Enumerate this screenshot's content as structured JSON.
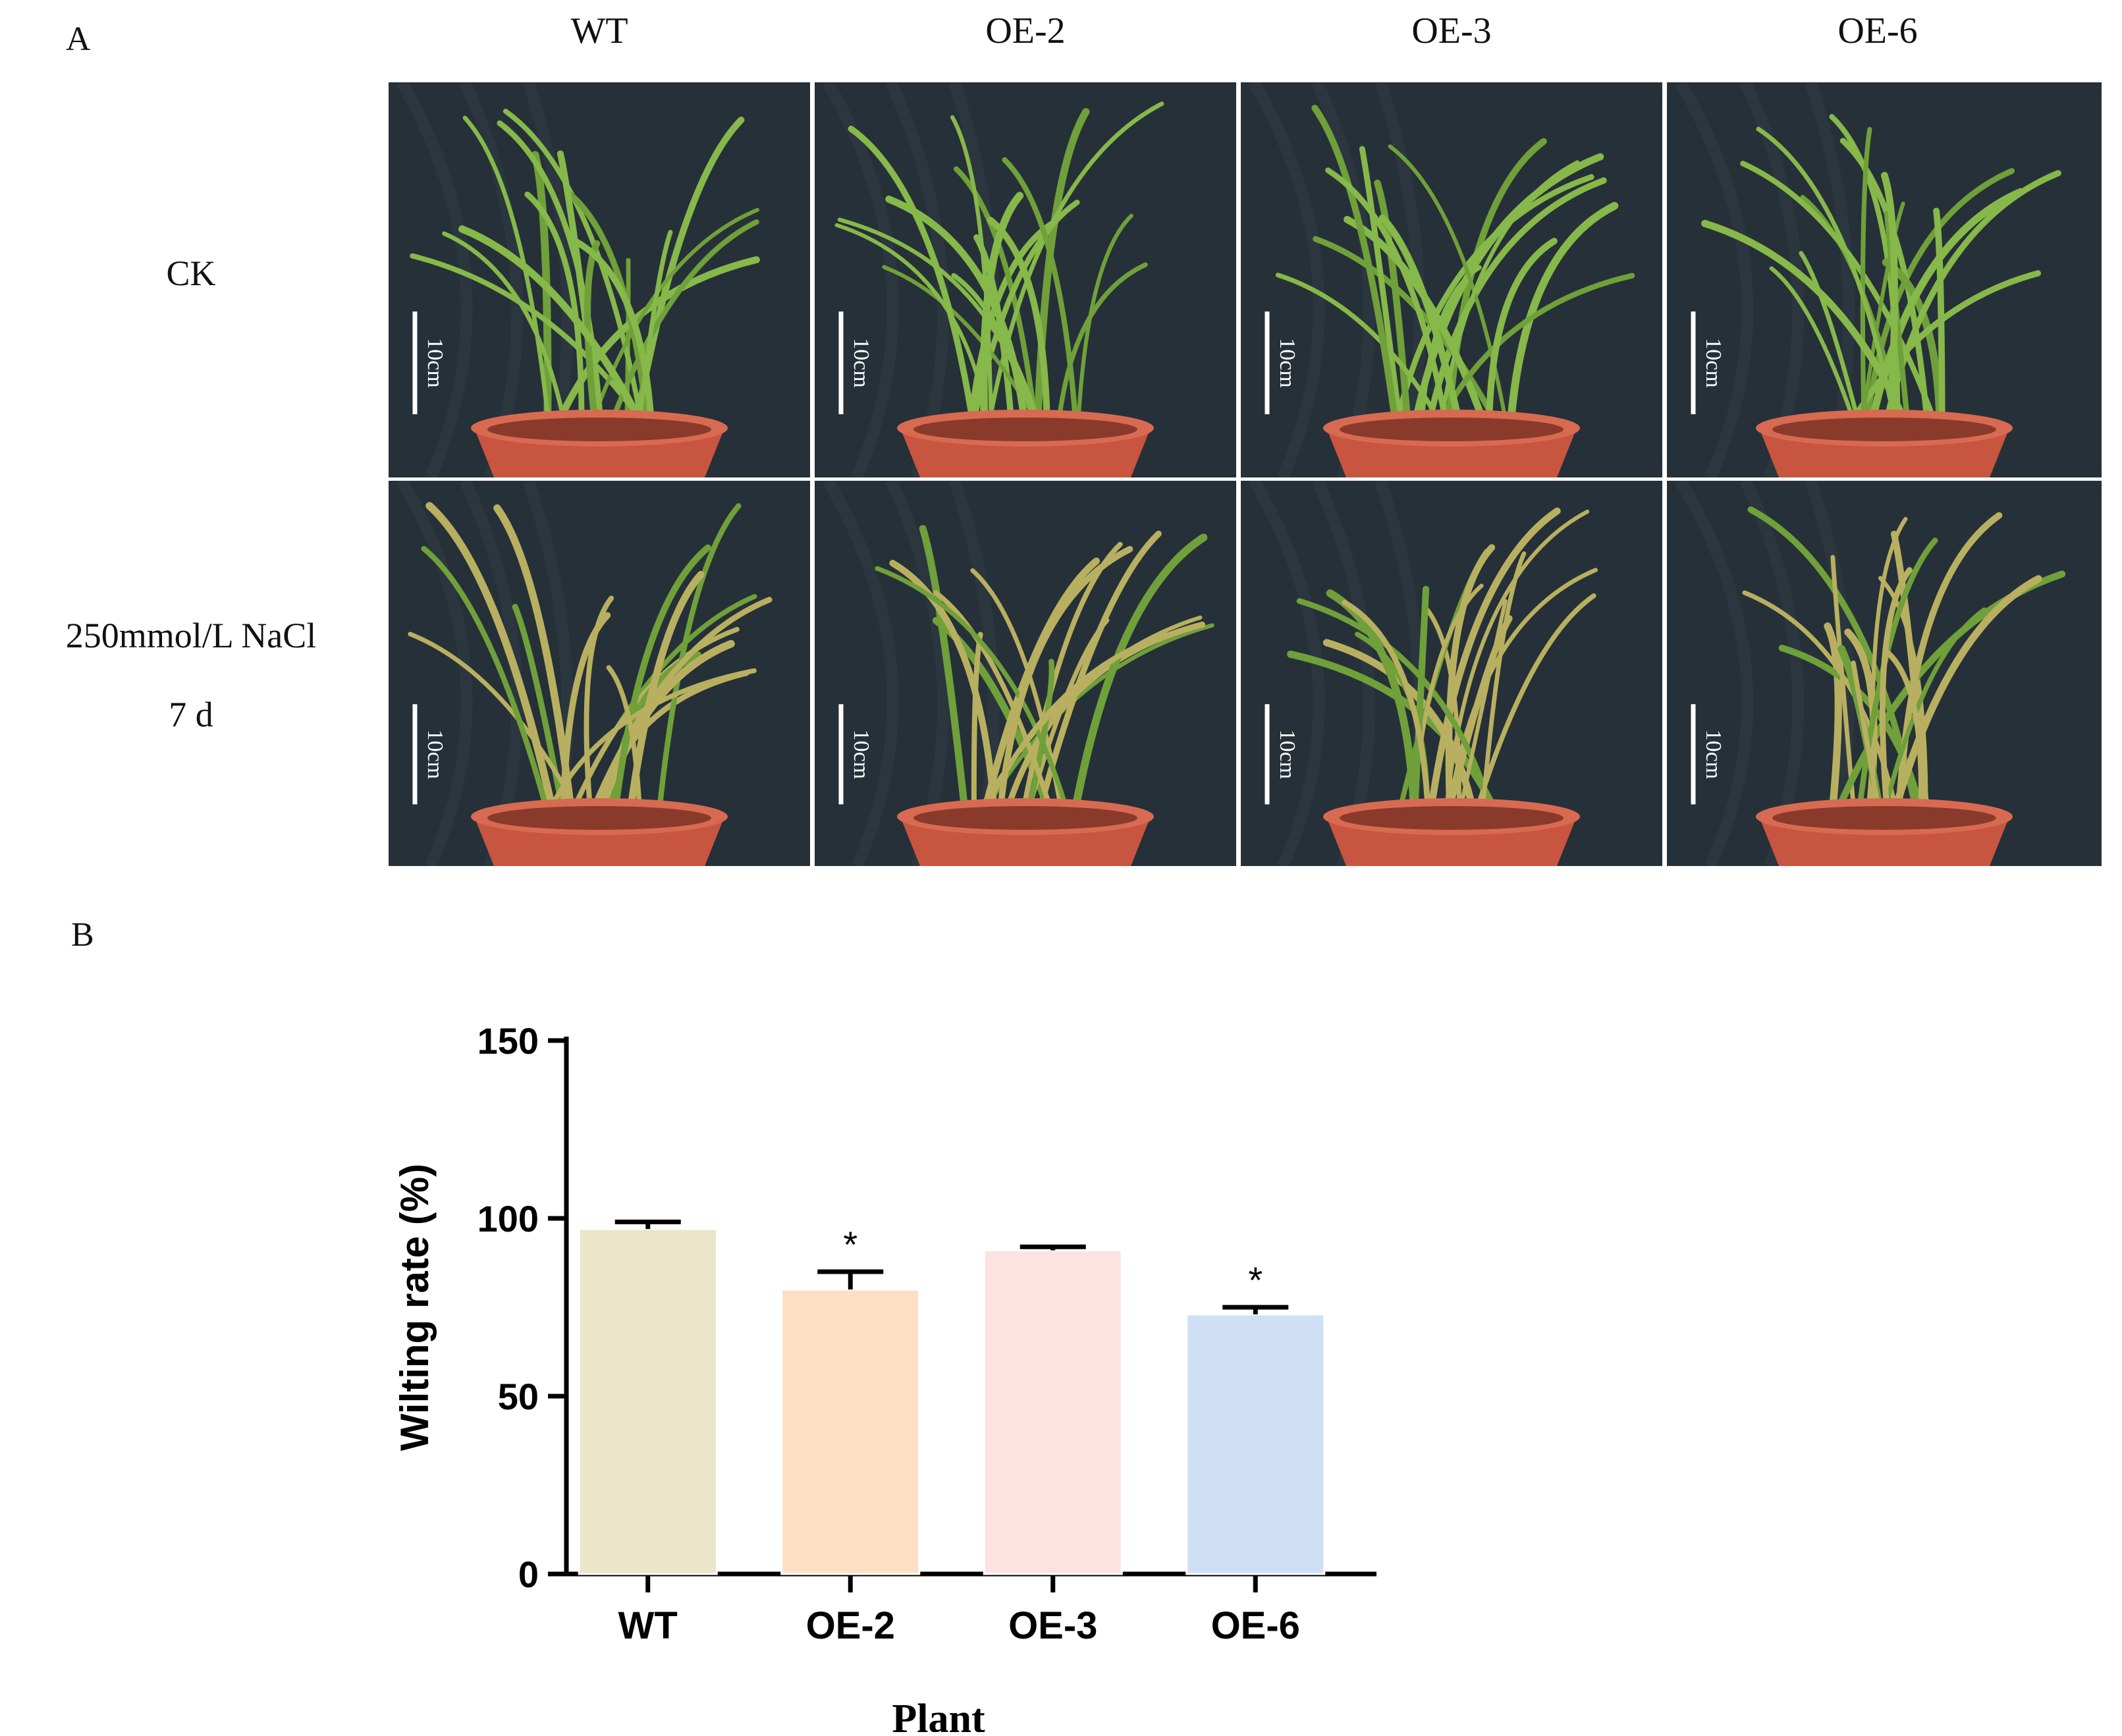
{
  "panel_a": {
    "label": "A",
    "columns": [
      "WT",
      "OE-2",
      "OE-3",
      "OE-6"
    ],
    "rows": [
      {
        "label_line1": "CK",
        "label_line2": ""
      },
      {
        "label_line1": "250mmol/L NaCl",
        "label_line2": "7 d"
      }
    ],
    "scale_bar_label": "10cm",
    "colors": {
      "background": "#263038",
      "pot": "#c8553f",
      "leaf": "#86b84a",
      "wilted_leaf": "#b8b060"
    }
  },
  "panel_b": {
    "label": "B"
  },
  "chart_data": {
    "type": "bar",
    "title": "",
    "xlabel": "Plant",
    "ylabel": "Wilting rate (%)",
    "categories": [
      "WT",
      "OE-2",
      "OE-3",
      "OE-6"
    ],
    "values": [
      97,
      80,
      91,
      73
    ],
    "errors": [
      2,
      5,
      1,
      2
    ],
    "significance": [
      "",
      "*",
      "",
      "*"
    ],
    "bar_colors": [
      "#ebe5c9",
      "#fde0c4",
      "#fde2e2",
      "#cfe0f6"
    ],
    "ylim": [
      0,
      150
    ],
    "yticks": [
      "0",
      "50",
      "100",
      "150"
    ]
  }
}
